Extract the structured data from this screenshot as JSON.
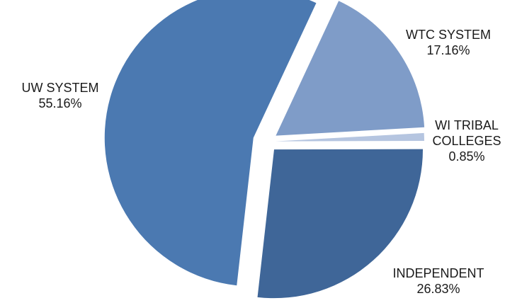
{
  "chart_data": {
    "type": "pie",
    "title": "",
    "slices": [
      {
        "label_lines": [
          "WTC SYSTEM"
        ],
        "value_text": "17.16%",
        "value": 17.16,
        "color": "#7f9cc8"
      },
      {
        "label_lines": [
          "WI TRIBAL",
          "COLLEGES"
        ],
        "value_text": "0.85%",
        "value": 0.85,
        "color": "#b5c5e0"
      },
      {
        "label_lines": [
          "INDEPENDENT"
        ],
        "value_text": "26.83%",
        "value": 26.83,
        "color": "#3f6698"
      },
      {
        "label_lines": [
          "UW SYSTEM"
        ],
        "value_text": "55.16%",
        "value": 55.16,
        "color": "#4b79b1"
      }
    ],
    "legend": "none",
    "exploded": true
  }
}
